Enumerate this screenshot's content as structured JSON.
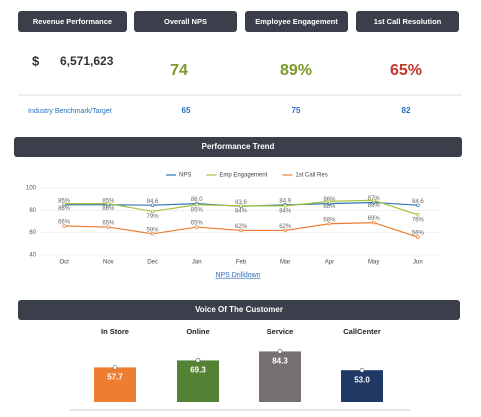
{
  "kpis": [
    {
      "header": "Revenue Performance",
      "prefix": "$",
      "value": "6,571,623",
      "color": "#333333"
    },
    {
      "header": "Overall NPS",
      "value": "74",
      "color": "#7a9a2a"
    },
    {
      "header": "Employee Engagement",
      "value": "89%",
      "color": "#7a9a2a"
    },
    {
      "header": "1st Call Resolution",
      "value": "65%",
      "color": "#c0392b"
    }
  ],
  "benchmark": {
    "label": "Industry Benchmark/Target",
    "values": [
      65,
      75,
      82
    ]
  },
  "sections": {
    "trend": "Performance Trend",
    "voice": "Voice Of The Customer"
  },
  "link": "NPS Drilldown",
  "chart_data": [
    {
      "type": "line",
      "categories": [
        "Oct",
        "Nov",
        "Dec",
        "Jan",
        "Feb",
        "Mar",
        "Apr",
        "May",
        "Jun"
      ],
      "ylim": [
        40,
        100
      ],
      "yticks": [
        40,
        60,
        80,
        100
      ],
      "grid": true,
      "legend": "top",
      "series": [
        {
          "name": "NPS",
          "color": "#2e75b6",
          "values": [
            85,
            85,
            84.6,
            86,
            83.6,
            84.9,
            86,
            87,
            84.6
          ],
          "value_labels": [
            "85%",
            "85%",
            "84.6",
            "86.0",
            "83.6",
            "84.9",
            "86%",
            "87%",
            "84.6"
          ]
        },
        {
          "name": "Emp Engagement",
          "color": "#a9c23f",
          "values": [
            86,
            86,
            79,
            85,
            84,
            84,
            88,
            89,
            76
          ],
          "value_labels": [
            "86%",
            "86%",
            "79%",
            "85%",
            "84%",
            "84%",
            "88%",
            "89%",
            "76%"
          ]
        },
        {
          "name": "1st Call Res",
          "color": "#ed7d31",
          "values": [
            66,
            65,
            59,
            65,
            62,
            62,
            68,
            69,
            56
          ],
          "value_labels": [
            "66%",
            "65%",
            "59%",
            "65%",
            "62%",
            "62%",
            "68%",
            "69%",
            "56%"
          ]
        }
      ]
    },
    {
      "type": "bar",
      "categories": [
        "In Store",
        "Online",
        "Service",
        "CallCenter"
      ],
      "values": [
        57.7,
        69.3,
        84.3,
        53.0
      ],
      "value_labels": [
        "57.7",
        "69.3",
        "84.3",
        "53.0"
      ],
      "colors": [
        "#ed7d31",
        "#548235",
        "#767171",
        "#203864"
      ]
    }
  ]
}
